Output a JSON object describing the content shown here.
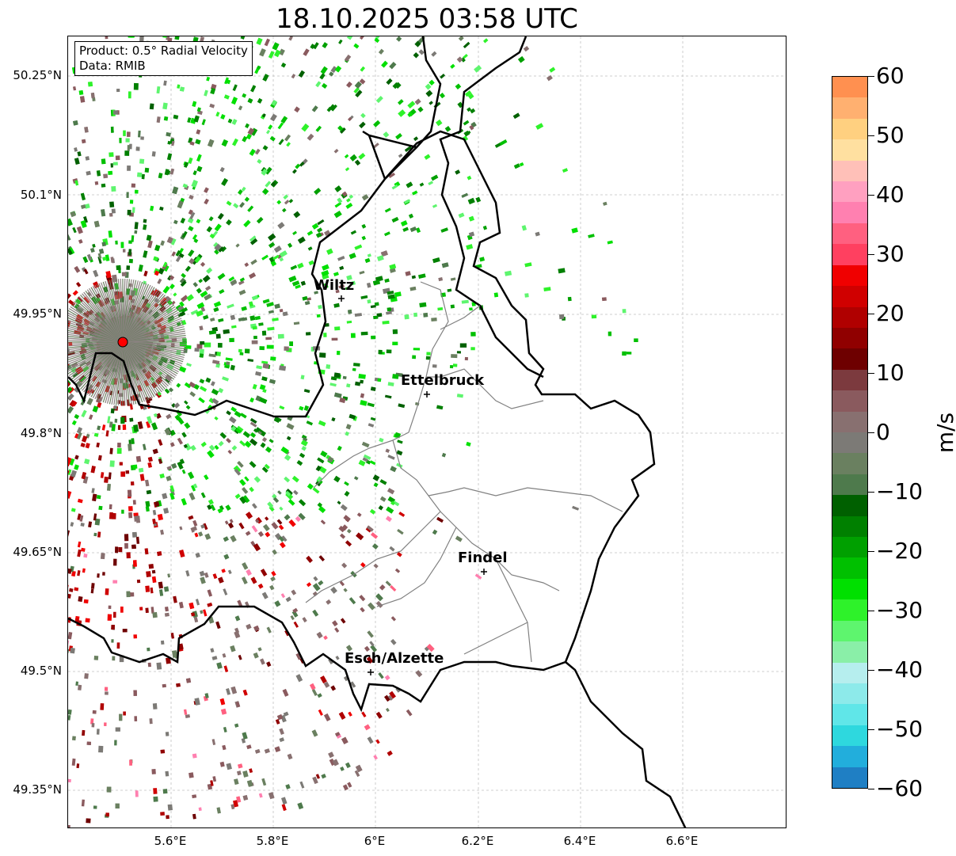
{
  "title": "18.10.2025 03:58 UTC",
  "info": {
    "product": "Product: 0.5° Radial Velocity",
    "data": "Data: RMIB"
  },
  "lat_ticks": [
    "50.25°N",
    "50.1°N",
    "49.95°N",
    "49.8°N",
    "49.65°N",
    "49.5°N",
    "49.35°N"
  ],
  "lon_ticks": [
    "5.6°E",
    "5.8°E",
    "6°E",
    "6.2°E",
    "6.4°E",
    "6.6°E"
  ],
  "cities": [
    "Wiltz",
    "Ettelbruck",
    "Findel",
    "Esch/Alzette"
  ],
  "colorbar": {
    "label": "m/s",
    "ticks": [
      "60",
      "50",
      "40",
      "30",
      "20",
      "10",
      "0",
      "−10",
      "−20",
      "−30",
      "−40",
      "−50",
      "−60"
    ],
    "range": [
      -60,
      60
    ],
    "colors": [
      "#1f7fc4",
      "#22aedc",
      "#2ed8de",
      "#60e6e8",
      "#8deaea",
      "#b6eeee",
      "#8aefa8",
      "#5ef56e",
      "#2ef22a",
      "#00e000",
      "#00c000",
      "#00a000",
      "#008000",
      "#006000",
      "#4e7a4c",
      "#6a8060",
      "#7c7a76",
      "#887070",
      "#8a5a5e",
      "#7c3a3e",
      "#6e0000",
      "#900000",
      "#b00000",
      "#d00000",
      "#f00000",
      "#ff4060",
      "#ff6080",
      "#ff80b0",
      "#ffa0c0",
      "#ffc0b8",
      "#ffe0a0",
      "#ffd080",
      "#ffb070",
      "#ff9050"
    ]
  },
  "radar_site_color": "#ff0000"
}
